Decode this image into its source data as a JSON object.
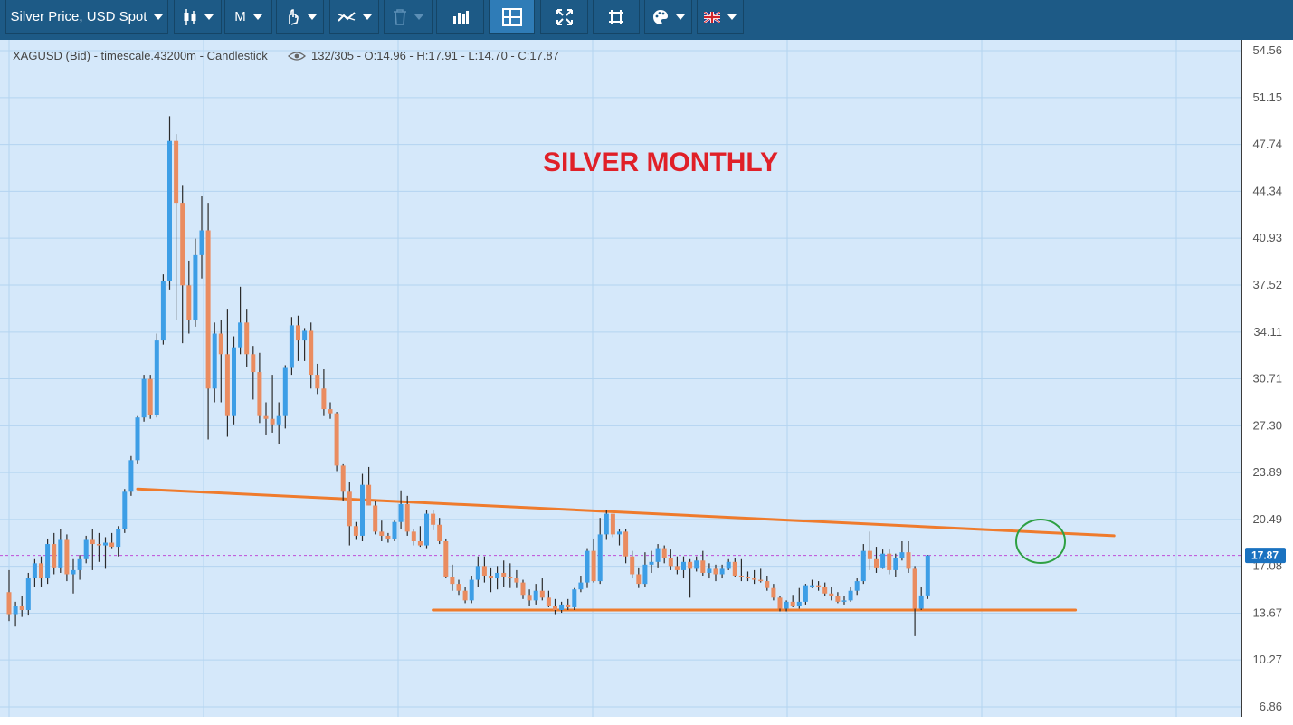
{
  "toolbar": {
    "instrument_label": "Silver Price, USD Spot",
    "period_label": "M",
    "buttons": [
      {
        "name": "candlestick-type-icon",
        "dropdown": true
      },
      {
        "name": "period",
        "dropdown": true
      },
      {
        "name": "draw-tool-icon",
        "dropdown": true
      },
      {
        "name": "indicator-icon",
        "dropdown": true
      },
      {
        "name": "trash-icon",
        "dropdown": true,
        "disabled": true
      },
      {
        "name": "volume-bars-icon",
        "dropdown": false
      },
      {
        "name": "crosshair-layout-icon",
        "dropdown": false,
        "active": true
      },
      {
        "name": "fullscreen-icon",
        "dropdown": false
      },
      {
        "name": "fit-screen-icon",
        "dropdown": false
      },
      {
        "name": "palette-icon",
        "dropdown": true
      },
      {
        "name": "uk-flag-icon",
        "dropdown": true
      }
    ]
  },
  "colors": {
    "toolbar": "#1d5a86",
    "plot_bg": "#d5e8fa",
    "grid": "#b4d4f0",
    "up": "#3d9ee6",
    "down": "#ea8c60",
    "wick": "#2b2b2b",
    "trendline": "#ef7b2c",
    "price_line": "#c04ed8",
    "title": "#e02028",
    "circle": "#2ea043",
    "price_tag": "#1a72c0"
  },
  "chart_data": {
    "type": "candlestick",
    "info_line": "XAGUSD (Bid) - timescale.43200m - Candlestick",
    "info_counts": "132/305 - O:14.96 - H:17.91 - L:14.70 - C:17.87",
    "annotation": "SILVER MONTHLY",
    "yaxis_ticks": [
      "54.56",
      "51.15",
      "47.74",
      "44.34",
      "40.93",
      "37.52",
      "34.11",
      "30.71",
      "27.30",
      "23.89",
      "20.49",
      "17.08",
      "13.67",
      "10.27",
      "6.86"
    ],
    "ylim": [
      6.86,
      54.56
    ],
    "current_price": "17.87",
    "grid": true,
    "candles": [
      [
        15.2,
        16.8,
        13.1,
        13.6
      ],
      [
        13.6,
        14.5,
        12.7,
        14.2
      ],
      [
        14.2,
        14.9,
        13.4,
        13.9
      ],
      [
        13.9,
        16.6,
        13.5,
        16.2
      ],
      [
        16.2,
        17.6,
        15.6,
        17.3
      ],
      [
        17.3,
        17.8,
        15.6,
        16.2
      ],
      [
        16.2,
        19.1,
        15.8,
        18.7
      ],
      [
        18.7,
        19.5,
        16.5,
        17.0
      ],
      [
        17.0,
        19.8,
        16.6,
        19.0
      ],
      [
        19.0,
        19.4,
        16.0,
        16.5
      ],
      [
        16.5,
        17.6,
        15.1,
        16.8
      ],
      [
        16.8,
        17.9,
        16.1,
        17.6
      ],
      [
        17.6,
        19.3,
        17.3,
        19.0
      ],
      [
        19.0,
        19.8,
        16.8,
        18.7
      ],
      [
        18.7,
        19.5,
        17.4,
        18.6
      ],
      [
        18.6,
        19.2,
        16.9,
        18.8
      ],
      [
        18.8,
        19.5,
        18.4,
        18.5
      ],
      [
        18.5,
        20.0,
        17.8,
        19.8
      ],
      [
        19.8,
        22.7,
        19.5,
        22.5
      ],
      [
        22.5,
        25.1,
        22.2,
        24.8
      ],
      [
        24.8,
        28.0,
        24.5,
        27.9
      ],
      [
        27.9,
        31.0,
        27.6,
        30.7
      ],
      [
        30.7,
        31.0,
        27.8,
        28.1
      ],
      [
        28.1,
        34.0,
        27.9,
        33.5
      ],
      [
        33.5,
        38.3,
        33.2,
        37.8
      ],
      [
        37.8,
        49.8,
        37.2,
        48.0
      ],
      [
        48.0,
        48.5,
        35.0,
        43.5
      ],
      [
        43.5,
        44.8,
        33.3,
        37.5
      ],
      [
        37.5,
        39.3,
        34.0,
        35.0
      ],
      [
        35.0,
        40.9,
        34.5,
        39.7
      ],
      [
        39.7,
        44.0,
        38.0,
        41.5
      ],
      [
        41.5,
        43.5,
        26.3,
        30.0
      ],
      [
        30.0,
        34.8,
        29.0,
        34.0
      ],
      [
        34.0,
        35.0,
        29.0,
        32.5
      ],
      [
        32.5,
        35.8,
        26.5,
        28.0
      ],
      [
        28.0,
        33.8,
        27.4,
        33.0
      ],
      [
        33.0,
        37.4,
        32.5,
        34.8
      ],
      [
        34.8,
        35.8,
        31.6,
        32.5
      ],
      [
        32.5,
        33.1,
        29.2,
        31.2
      ],
      [
        31.2,
        32.6,
        27.5,
        28.0
      ],
      [
        28.0,
        29.0,
        26.6,
        27.8
      ],
      [
        27.8,
        31.0,
        26.8,
        27.4
      ],
      [
        27.4,
        29.0,
        26.0,
        28.0
      ],
      [
        28.0,
        31.7,
        27.1,
        31.5
      ],
      [
        31.5,
        35.2,
        31.0,
        34.6
      ],
      [
        34.6,
        35.3,
        32.0,
        33.5
      ],
      [
        33.5,
        34.4,
        32.0,
        34.2
      ],
      [
        34.2,
        34.8,
        30.0,
        31.0
      ],
      [
        31.0,
        31.8,
        29.6,
        30.0
      ],
      [
        30.0,
        31.4,
        28.0,
        28.5
      ],
      [
        28.5,
        29.0,
        27.8,
        28.2
      ],
      [
        28.2,
        28.3,
        24.0,
        24.4
      ],
      [
        24.4,
        24.5,
        21.8,
        22.5
      ],
      [
        22.5,
        23.2,
        18.6,
        20.0
      ],
      [
        20.0,
        20.3,
        19.0,
        19.3
      ],
      [
        19.3,
        23.8,
        18.9,
        23.0
      ],
      [
        23.0,
        24.3,
        21.5,
        21.5
      ],
      [
        21.5,
        21.8,
        19.4,
        19.6
      ],
      [
        19.6,
        20.4,
        18.9,
        19.3
      ],
      [
        19.3,
        19.5,
        18.8,
        19.1
      ],
      [
        19.1,
        20.4,
        18.9,
        20.3
      ],
      [
        20.3,
        22.6,
        19.8,
        21.6
      ],
      [
        21.6,
        22.2,
        19.3,
        19.6
      ],
      [
        19.6,
        19.8,
        18.6,
        18.9
      ],
      [
        18.9,
        20.0,
        18.5,
        18.6
      ],
      [
        18.6,
        21.2,
        18.4,
        20.9
      ],
      [
        20.9,
        21.2,
        19.7,
        20.1
      ],
      [
        20.1,
        20.6,
        18.7,
        18.9
      ],
      [
        18.9,
        19.1,
        16.2,
        16.3
      ],
      [
        16.3,
        17.2,
        15.3,
        15.8
      ],
      [
        15.8,
        16.1,
        15.0,
        15.3
      ],
      [
        15.3,
        15.6,
        14.4,
        14.6
      ],
      [
        14.6,
        16.4,
        14.4,
        16.1
      ],
      [
        16.1,
        17.8,
        15.6,
        17.1
      ],
      [
        17.1,
        17.8,
        15.9,
        16.4
      ],
      [
        16.4,
        17.0,
        15.2,
        16.2
      ],
      [
        16.2,
        17.1,
        15.4,
        16.6
      ],
      [
        16.6,
        17.5,
        15.6,
        16.3
      ],
      [
        16.3,
        17.3,
        15.5,
        16.2
      ],
      [
        16.2,
        16.8,
        15.5,
        15.9
      ],
      [
        15.9,
        16.1,
        14.7,
        15.0
      ],
      [
        15.0,
        15.4,
        14.2,
        14.6
      ],
      [
        14.6,
        15.8,
        14.3,
        15.3
      ],
      [
        15.3,
        16.2,
        14.6,
        14.8
      ],
      [
        14.8,
        15.3,
        14.1,
        14.2
      ],
      [
        14.2,
        14.7,
        13.6,
        13.9
      ],
      [
        13.9,
        14.5,
        13.7,
        14.3
      ],
      [
        14.3,
        14.7,
        13.9,
        14.1
      ],
      [
        14.1,
        15.5,
        13.9,
        15.4
      ],
      [
        15.4,
        16.4,
        15.2,
        15.9
      ],
      [
        15.9,
        18.4,
        15.5,
        18.2
      ],
      [
        18.2,
        19.1,
        15.9,
        16.0
      ],
      [
        16.0,
        20.6,
        15.8,
        19.4
      ],
      [
        19.4,
        21.2,
        19.0,
        20.9
      ],
      [
        20.9,
        20.9,
        19.2,
        19.4
      ],
      [
        19.4,
        19.8,
        18.6,
        19.6
      ],
      [
        19.6,
        19.8,
        17.3,
        17.8
      ],
      [
        17.8,
        18.2,
        16.2,
        16.5
      ],
      [
        16.5,
        17.0,
        15.5,
        15.8
      ],
      [
        15.8,
        18.1,
        15.6,
        17.2
      ],
      [
        17.2,
        18.2,
        16.6,
        17.4
      ],
      [
        17.4,
        18.7,
        17.0,
        18.4
      ],
      [
        18.4,
        18.6,
        17.3,
        17.7
      ],
      [
        17.7,
        18.3,
        16.8,
        17.1
      ],
      [
        17.1,
        17.8,
        16.5,
        16.8
      ],
      [
        16.8,
        17.8,
        16.2,
        17.4
      ],
      [
        17.4,
        17.6,
        14.8,
        16.9
      ],
      [
        16.9,
        17.8,
        16.7,
        17.5
      ],
      [
        17.5,
        18.2,
        16.4,
        16.6
      ],
      [
        16.6,
        17.3,
        16.2,
        16.9
      ],
      [
        16.9,
        17.2,
        16.0,
        16.5
      ],
      [
        16.5,
        17.2,
        16.2,
        16.9
      ],
      [
        16.9,
        17.6,
        16.8,
        17.4
      ],
      [
        17.4,
        17.7,
        16.3,
        16.4
      ],
      [
        16.4,
        17.6,
        16.0,
        16.3
      ],
      [
        16.3,
        16.7,
        16.0,
        16.2
      ],
      [
        16.2,
        16.8,
        15.8,
        16.1
      ],
      [
        16.1,
        16.9,
        15.9,
        16.0
      ],
      [
        16.0,
        16.4,
        15.3,
        15.5
      ],
      [
        15.5,
        15.8,
        14.6,
        14.8
      ],
      [
        14.8,
        14.9,
        13.8,
        14.0
      ],
      [
        14.0,
        14.6,
        13.8,
        14.5
      ],
      [
        14.5,
        15.0,
        14.1,
        14.2
      ],
      [
        14.2,
        15.5,
        14.0,
        14.5
      ],
      [
        14.5,
        15.8,
        14.3,
        15.7
      ],
      [
        15.7,
        16.1,
        15.5,
        15.7
      ],
      [
        15.7,
        16.0,
        15.3,
        15.6
      ],
      [
        15.6,
        15.9,
        14.9,
        15.1
      ],
      [
        15.1,
        15.6,
        14.6,
        14.9
      ],
      [
        14.9,
        15.2,
        14.4,
        14.5
      ],
      [
        14.5,
        14.9,
        14.3,
        14.6
      ],
      [
        14.6,
        15.6,
        14.5,
        15.3
      ],
      [
        15.3,
        16.2,
        15.0,
        16.0
      ],
      [
        16.0,
        18.7,
        15.8,
        18.2
      ],
      [
        18.2,
        19.6,
        16.8,
        17.6
      ],
      [
        17.6,
        18.5,
        16.6,
        17.0
      ],
      [
        17.0,
        18.3,
        16.9,
        18.0
      ],
      [
        18.0,
        18.3,
        16.5,
        16.8
      ],
      [
        16.8,
        18.0,
        16.3,
        17.7
      ],
      [
        17.7,
        18.9,
        17.5,
        18.1
      ],
      [
        18.1,
        18.9,
        16.6,
        16.9
      ],
      [
        16.9,
        17.1,
        12.0,
        14.0
      ],
      [
        14.0,
        15.6,
        13.9,
        14.96
      ],
      [
        14.96,
        17.91,
        14.7,
        17.87
      ]
    ],
    "trendlines": [
      {
        "name": "descending-resistance",
        "points": [
          [
            20,
            22.7
          ],
          [
            172,
            19.3
          ]
        ]
      },
      {
        "name": "horizontal-support",
        "points": [
          [
            66,
            13.9
          ],
          [
            166,
            13.9
          ]
        ]
      }
    ],
    "highlight_circle": {
      "candle_index": 160,
      "price": 18.9
    }
  }
}
